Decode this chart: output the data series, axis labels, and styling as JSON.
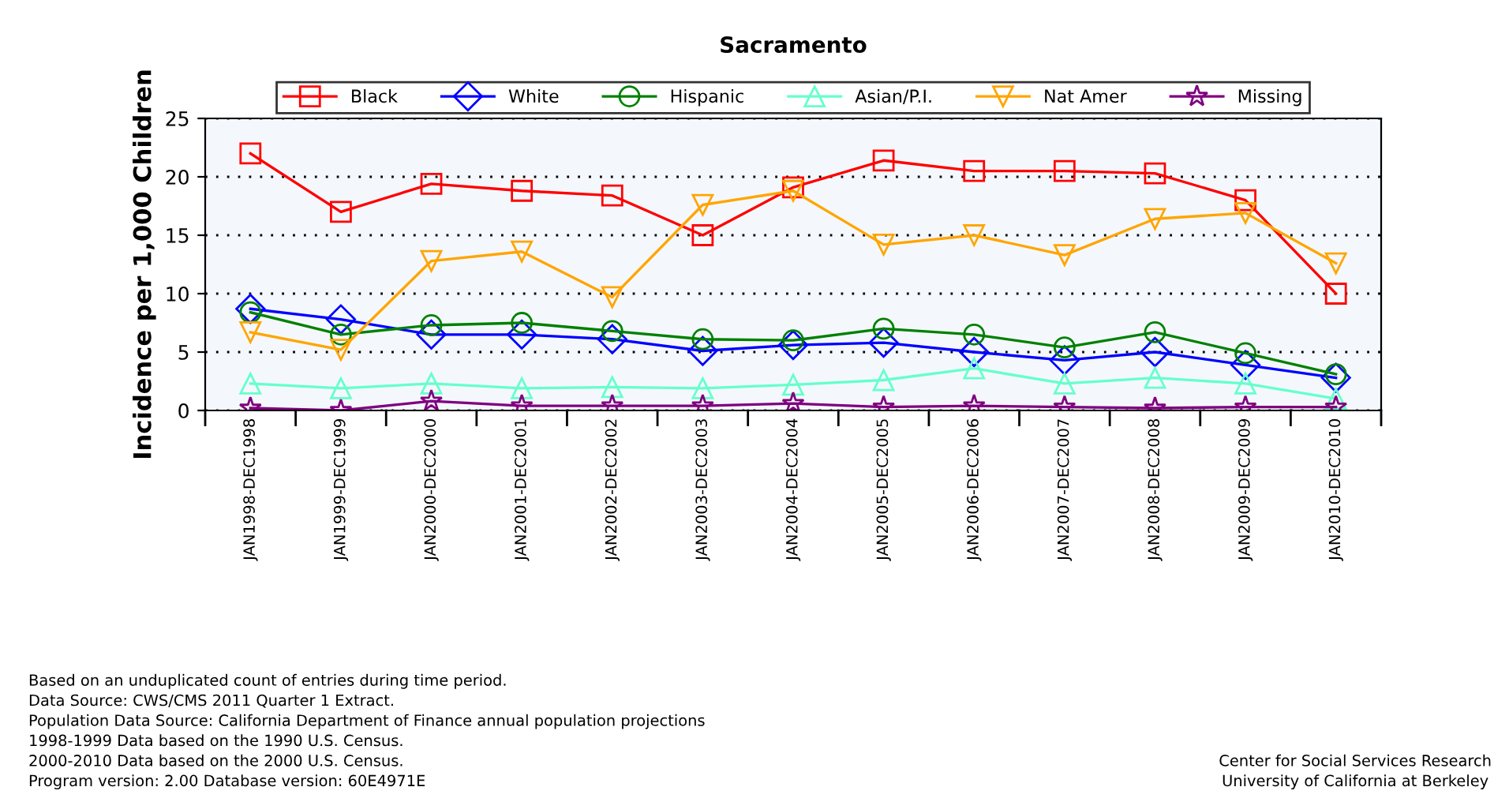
{
  "chart_data": {
    "type": "line",
    "title": "Sacramento",
    "ylabel": "Incidence per 1,000 Children",
    "categories": [
      "JAN1998-DEC1998",
      "JAN1999-DEC1999",
      "JAN2000-DEC2000",
      "JAN2001-DEC2001",
      "JAN2002-DEC2002",
      "JAN2003-DEC2003",
      "JAN2004-DEC2004",
      "JAN2005-DEC2005",
      "JAN2006-DEC2006",
      "JAN2007-DEC2007",
      "JAN2008-DEC2008",
      "JAN2009-DEC2009",
      "JAN2010-DEC2010"
    ],
    "series": [
      {
        "name": "Black",
        "color": "#ff0000",
        "marker": "square",
        "values": [
          22.0,
          17.0,
          19.4,
          18.8,
          18.4,
          15.0,
          19.1,
          21.4,
          20.5,
          20.5,
          20.3,
          18.0,
          10.0
        ]
      },
      {
        "name": "White",
        "color": "#0000ff",
        "marker": "diamond",
        "values": [
          8.7,
          7.8,
          6.5,
          6.5,
          6.1,
          5.1,
          5.6,
          5.8,
          5.0,
          4.3,
          5.0,
          3.9,
          2.8
        ]
      },
      {
        "name": "Hispanic",
        "color": "#008000",
        "marker": "circle",
        "values": [
          8.4,
          6.5,
          7.3,
          7.5,
          6.8,
          6.1,
          6.0,
          7.0,
          6.5,
          5.4,
          6.7,
          4.9,
          3.1
        ]
      },
      {
        "name": "Asian/P.I.",
        "color": "#66ffcc",
        "marker": "triangle",
        "values": [
          2.3,
          1.9,
          2.3,
          1.9,
          2.0,
          1.9,
          2.2,
          2.6,
          3.6,
          2.3,
          2.8,
          2.3,
          1.0
        ]
      },
      {
        "name": "Nat Amer",
        "color": "#ffa500",
        "marker": "triangle_down",
        "values": [
          6.7,
          5.2,
          12.8,
          13.6,
          9.7,
          17.6,
          18.8,
          14.2,
          15.0,
          13.3,
          16.4,
          16.9,
          12.6
        ]
      },
      {
        "name": "Missing",
        "color": "#800080",
        "marker": "star",
        "values": [
          0.2,
          0.0,
          0.8,
          0.4,
          0.4,
          0.4,
          0.6,
          0.3,
          0.4,
          0.3,
          0.2,
          0.3,
          0.3
        ]
      }
    ],
    "ylim": [
      0,
      25
    ],
    "yticks": [
      0,
      5,
      10,
      15,
      20,
      25
    ],
    "grid": "y",
    "legend": "top",
    "line_style": "solid",
    "annotations": [
      "Based on an unduplicated count of entries during time period.\nData Source: CWS/CMS 2011 Quarter 1 Extract.\nPopulation Data Source: California Department of Finance annual population projections\n1998-1999 Data based on the 1990 U.S. Census.\n2000-2010 Data based on the 2000 U.S. Census.\nProgram version: 2.00 Database version: 60E4971E",
      "Center for Social Services Research\nUniversity of California at Berkeley"
    ]
  }
}
